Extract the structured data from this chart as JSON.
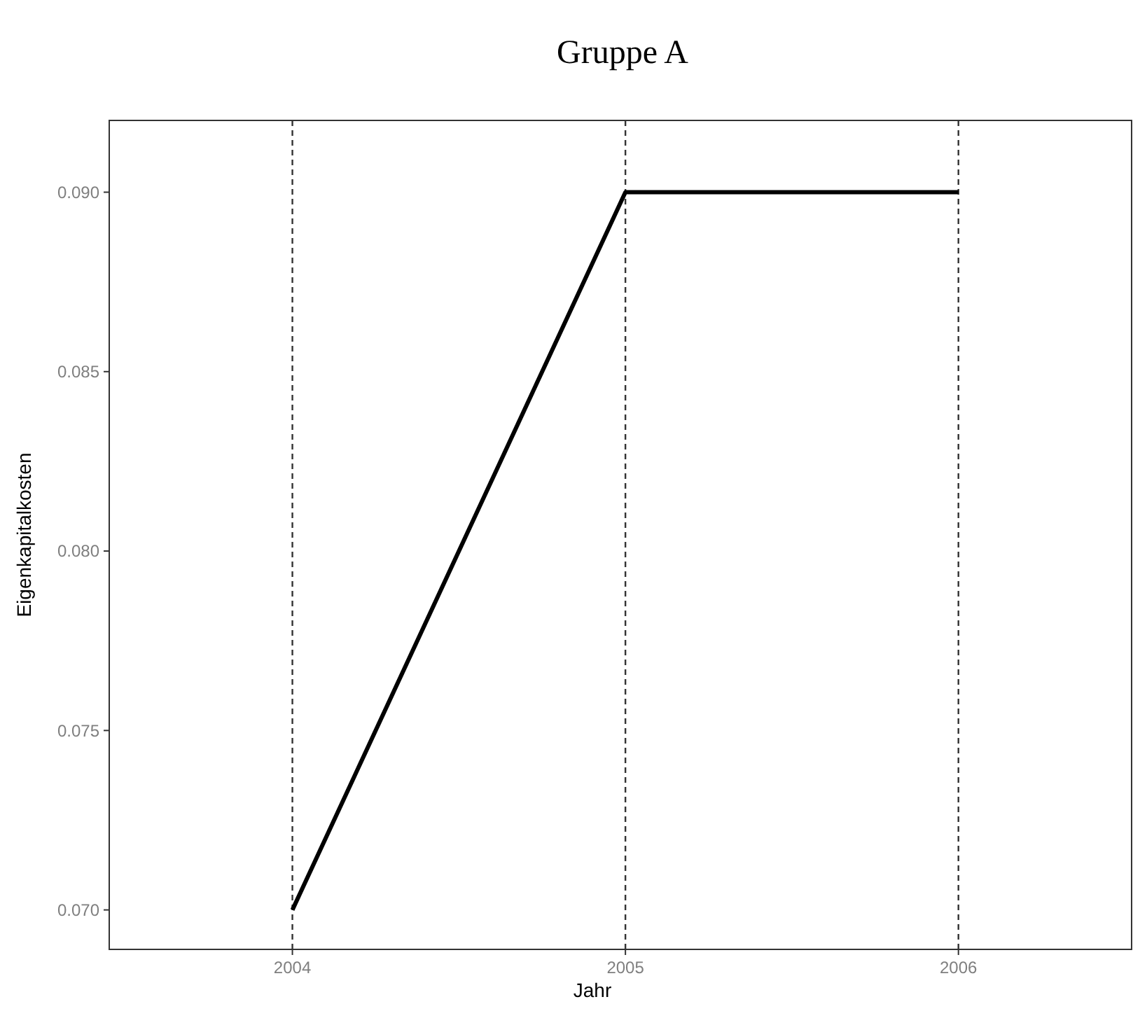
{
  "chart_data": {
    "type": "line",
    "title": "Gruppe A",
    "xlabel": "Jahr",
    "ylabel": "Eigenkapitalkosten",
    "x": [
      2004,
      2005,
      2006
    ],
    "series": [
      {
        "color": "#000000",
        "values": [
          0.07,
          0.09,
          0.09
        ]
      }
    ],
    "xlim": [
      2003.45,
      2006.52
    ],
    "xticks": [
      2004,
      2005,
      2006
    ],
    "ylim": [
      0.0689,
      0.092
    ],
    "yticks": [
      {
        "value": 0.07,
        "label": "0.070"
      },
      {
        "value": 0.075,
        "label": "0.075"
      },
      {
        "value": 0.08,
        "label": "0.080"
      },
      {
        "value": 0.085,
        "label": "0.085"
      },
      {
        "value": 0.09,
        "label": "0.090"
      }
    ],
    "ref_lines": [
      {
        "axis": "x",
        "value": 2004,
        "color": "#333333",
        "line_style": "dashed"
      },
      {
        "axis": "x",
        "value": 2005,
        "color": "#333333",
        "line_style": "dashed"
      },
      {
        "axis": "x",
        "value": 2006,
        "color": "#333333",
        "line_style": "dashed"
      }
    ],
    "grid": false,
    "marker": "none",
    "line_style": "solid"
  }
}
